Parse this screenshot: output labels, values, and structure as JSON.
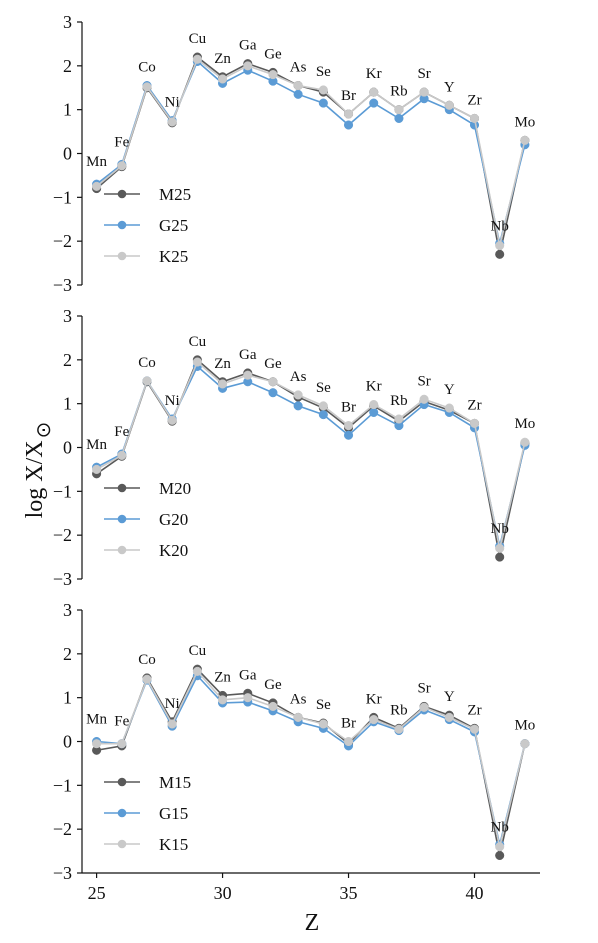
{
  "colors": {
    "M": "#595959",
    "G": "#5b9bd5",
    "K": "#c9c9c9"
  },
  "y_axis_title": "log X/X",
  "y_axis_title_symbol": "⊙",
  "x_axis_title": "Z",
  "chart_data": [
    {
      "type": "line",
      "x": [
        25,
        26,
        27,
        28,
        29,
        30,
        31,
        32,
        33,
        34,
        35,
        36,
        37,
        38,
        39,
        40,
        41,
        42
      ],
      "element_labels": [
        "Mn",
        "Fe",
        "Co",
        "Ni",
        "Cu",
        "Zn",
        "Ga",
        "Ge",
        "As",
        "Se",
        "Br",
        "Kr",
        "Rb",
        "Sr",
        "Y",
        "Zr",
        "Nb",
        "Mo"
      ],
      "xlim": [
        24.5,
        42.6
      ],
      "ylim": [
        -3,
        3
      ],
      "yticks": [
        "3",
        "2",
        "1",
        "0",
        "−1",
        "−2",
        "−3"
      ],
      "xticks": [],
      "legend_position": "bottom-left",
      "series": [
        {
          "name": "M25",
          "color": "#595959",
          "values": [
            -0.8,
            -0.3,
            1.5,
            0.7,
            2.2,
            1.75,
            2.05,
            1.85,
            1.55,
            1.4,
            0.9,
            1.4,
            1.0,
            1.4,
            1.1,
            0.8,
            -2.3,
            0.3
          ]
        },
        {
          "name": "G25",
          "color": "#5b9bd5",
          "values": [
            -0.7,
            -0.25,
            1.55,
            0.75,
            2.1,
            1.6,
            1.9,
            1.65,
            1.35,
            1.15,
            0.65,
            1.15,
            0.8,
            1.25,
            1.0,
            0.65,
            -2.05,
            0.2
          ]
        },
        {
          "name": "K25",
          "color": "#c9c9c9",
          "values": [
            -0.75,
            -0.28,
            1.52,
            0.72,
            2.15,
            1.7,
            2.0,
            1.8,
            1.55,
            1.45,
            0.9,
            1.4,
            1.0,
            1.4,
            1.1,
            0.8,
            -2.1,
            0.3
          ]
        }
      ]
    },
    {
      "type": "line",
      "x": [
        25,
        26,
        27,
        28,
        29,
        30,
        31,
        32,
        33,
        34,
        35,
        36,
        37,
        38,
        39,
        40,
        41,
        42
      ],
      "element_labels": [
        "Mn",
        "Fe",
        "Co",
        "Ni",
        "Cu",
        "Zn",
        "Ga",
        "Ge",
        "As",
        "Se",
        "Br",
        "Kr",
        "Rb",
        "Sr",
        "Y",
        "Zr",
        "Nb",
        "Mo"
      ],
      "xlim": [
        24.5,
        42.6
      ],
      "ylim": [
        -3,
        3
      ],
      "yticks": [
        "3",
        "2",
        "1",
        "0",
        "−1",
        "−2",
        "−3"
      ],
      "xticks": [],
      "legend_position": "bottom-left",
      "series": [
        {
          "name": "M20",
          "color": "#595959",
          "values": [
            -0.6,
            -0.2,
            1.5,
            0.6,
            2.0,
            1.5,
            1.7,
            1.5,
            1.15,
            0.9,
            0.45,
            0.95,
            0.6,
            1.05,
            0.85,
            0.55,
            -2.5,
            0.1
          ]
        },
        {
          "name": "G20",
          "color": "#5b9bd5",
          "values": [
            -0.45,
            -0.15,
            1.52,
            0.65,
            1.85,
            1.35,
            1.5,
            1.25,
            0.95,
            0.75,
            0.28,
            0.8,
            0.5,
            0.98,
            0.8,
            0.45,
            -2.25,
            0.05
          ]
        },
        {
          "name": "K20",
          "color": "#c9c9c9",
          "values": [
            -0.5,
            -0.18,
            1.52,
            0.62,
            1.95,
            1.45,
            1.65,
            1.5,
            1.2,
            0.95,
            0.5,
            0.98,
            0.65,
            1.1,
            0.9,
            0.55,
            -2.3,
            0.12
          ]
        }
      ]
    },
    {
      "type": "line",
      "x": [
        25,
        26,
        27,
        28,
        29,
        30,
        31,
        32,
        33,
        34,
        35,
        36,
        37,
        38,
        39,
        40,
        41,
        42
      ],
      "element_labels": [
        "Mn",
        "Fe",
        "Co",
        "Ni",
        "Cu",
        "Zn",
        "Ga",
        "Ge",
        "As",
        "Se",
        "Br",
        "Kr",
        "Rb",
        "Sr",
        "Y",
        "Zr",
        "Nb",
        "Mo"
      ],
      "xlim": [
        24.5,
        42.6
      ],
      "ylim": [
        -3,
        3
      ],
      "yticks": [
        "3",
        "2",
        "1",
        "0",
        "−1",
        "−2",
        "−3"
      ],
      "xticks": [
        "25",
        "30",
        "35",
        "40"
      ],
      "legend_position": "bottom-left",
      "series": [
        {
          "name": "M15",
          "color": "#595959",
          "values": [
            -0.2,
            -0.1,
            1.45,
            0.45,
            1.65,
            1.05,
            1.1,
            0.88,
            0.55,
            0.42,
            -0.05,
            0.55,
            0.3,
            0.8,
            0.6,
            0.3,
            -2.6,
            -0.05
          ]
        },
        {
          "name": "G15",
          "color": "#5b9bd5",
          "values": [
            0.0,
            -0.05,
            1.4,
            0.35,
            1.5,
            0.88,
            0.9,
            0.7,
            0.45,
            0.3,
            -0.1,
            0.45,
            0.25,
            0.72,
            0.5,
            0.22,
            -2.35,
            -0.05
          ]
        },
        {
          "name": "K15",
          "color": "#c9c9c9",
          "values": [
            -0.05,
            -0.05,
            1.42,
            0.4,
            1.6,
            0.95,
            1.0,
            0.8,
            0.55,
            0.4,
            0.0,
            0.5,
            0.28,
            0.78,
            0.55,
            0.28,
            -2.4,
            -0.05
          ]
        }
      ]
    }
  ]
}
